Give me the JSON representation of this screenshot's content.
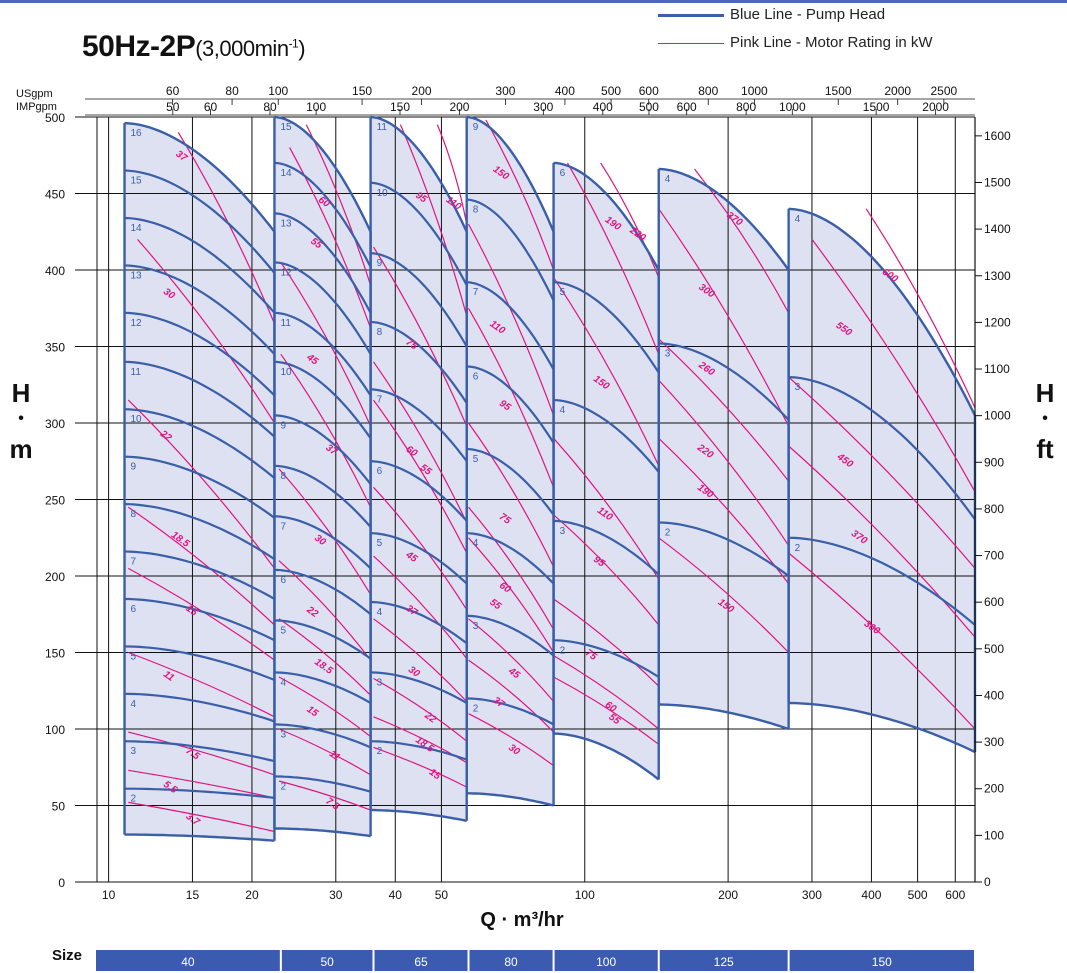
{
  "title": {
    "main": "50Hz-2P",
    "sub": "(3,000min",
    "sup": "-1",
    "close": ")"
  },
  "legend": {
    "blue": {
      "label": "Blue Line - Pump Head",
      "color": "#3a5fa8"
    },
    "pink": {
      "label": "Pink Line - Motor Rating in kW",
      "color": "#e0157f"
    }
  },
  "axes": {
    "left_H": "H",
    "left_dot": "•",
    "left_m": "m",
    "right_H": "H",
    "right_dot": "•",
    "right_ft": "ft",
    "xlabel": "Q · m³/hr",
    "usgpm_label": "USgpm",
    "impgpm_label": "IMPgpm",
    "size_label": "Size"
  },
  "chart_data": {
    "type": "line",
    "title": "50Hz-2P(3,000min-1)",
    "xlabel": "Q · m³/hr",
    "ylabel": "H · m",
    "x_scale": "log",
    "xlim": [
      8.5,
      660
    ],
    "ylim": [
      0,
      500
    ],
    "x_ticks": [
      10,
      15,
      20,
      30,
      40,
      50,
      100,
      200,
      300,
      400,
      500,
      600
    ],
    "y_ticks_m": [
      0,
      50,
      100,
      150,
      200,
      250,
      300,
      350,
      400,
      450,
      500
    ],
    "ft_ticks": [
      0,
      100,
      200,
      300,
      400,
      500,
      600,
      700,
      800,
      900,
      1000,
      1100,
      1200,
      1300,
      1400,
      1500,
      1600
    ],
    "usgpm_ticks": [
      60,
      80,
      100,
      150,
      200,
      300,
      400,
      500,
      600,
      800,
      1000,
      1500,
      2000,
      2500
    ],
    "impgpm_ticks": [
      50,
      60,
      80,
      100,
      150,
      200,
      300,
      400,
      500,
      600,
      800,
      1000,
      1500,
      2000
    ],
    "size_bands": [
      {
        "label": "40",
        "q": [
          8.5,
          23
        ]
      },
      {
        "label": "50",
        "q": [
          23,
          36
        ]
      },
      {
        "label": "65",
        "q": [
          36,
          57
        ]
      },
      {
        "label": "80",
        "q": [
          57,
          86
        ]
      },
      {
        "label": "100",
        "q": [
          86,
          143
        ]
      },
      {
        "label": "125",
        "q": [
          143,
          268
        ]
      },
      {
        "label": "150",
        "q": [
          268,
          660
        ]
      }
    ],
    "groups": [
      {
        "q1": 10.8,
        "q2": 22.3,
        "H_top_left": 496,
        "H_top_right": 425,
        "H_bot_left": 31,
        "H_bot_right": 27,
        "stages": [
          {
            "n": "16",
            "L": 496,
            "R": 425
          },
          {
            "n": "15",
            "L": 465,
            "R": 398
          },
          {
            "n": "14",
            "L": 434,
            "R": 372
          },
          {
            "n": "13",
            "L": 403,
            "R": 345
          },
          {
            "n": "12",
            "L": 372,
            "R": 318
          },
          {
            "n": "11",
            "L": 340,
            "R": 291
          },
          {
            "n": "10",
            "L": 309,
            "R": 264
          },
          {
            "n": "9",
            "L": 278,
            "R": 238
          },
          {
            "n": "8",
            "L": 247,
            "R": 211
          },
          {
            "n": "7",
            "L": 216,
            "R": 185
          },
          {
            "n": "6",
            "L": 185,
            "R": 158
          },
          {
            "n": "5",
            "L": 154,
            "R": 132
          },
          {
            "n": "4",
            "L": 123,
            "R": 105
          },
          {
            "n": "3",
            "L": 92,
            "R": 79
          },
          {
            "n": "2",
            "L": 61,
            "R": 55
          }
        ],
        "kw": [
          {
            "v": "37",
            "q0": 14.0,
            "H0": 490,
            "q1": 22.3,
            "H1": 365,
            "lq": 13.8,
            "lH": 475
          },
          {
            "v": "30",
            "q0": 11.5,
            "H0": 420,
            "q1": 22.3,
            "H1": 300,
            "lq": 13.0,
            "lH": 385
          },
          {
            "v": "22",
            "q0": 11.0,
            "H0": 315,
            "q1": 22.3,
            "H1": 205,
            "lq": 12.8,
            "lH": 292
          },
          {
            "v": "18.5",
            "q0": 11.0,
            "H0": 245,
            "q1": 22.3,
            "H1": 168,
            "lq": 13.5,
            "lH": 226
          },
          {
            "v": "15",
            "q0": 11.0,
            "H0": 205,
            "q1": 22.3,
            "H1": 145,
            "lq": 14.5,
            "lH": 178
          },
          {
            "v": "11",
            "q0": 11.0,
            "H0": 150,
            "q1": 22.3,
            "H1": 108,
            "lq": 13.0,
            "lH": 135
          },
          {
            "v": "7.5",
            "q0": 11.0,
            "H0": 98,
            "q1": 22.3,
            "H1": 70,
            "lq": 14.5,
            "lH": 85
          },
          {
            "v": "5.5",
            "q0": 11.0,
            "H0": 73,
            "q1": 22.3,
            "H1": 55,
            "lq": 13.0,
            "lH": 63
          },
          {
            "v": "3.7",
            "q0": 11.0,
            "H0": 52,
            "q1": 22.3,
            "H1": 33,
            "lq": 14.5,
            "lH": 42
          }
        ]
      },
      {
        "q1": 22.3,
        "q2": 35.5,
        "H_top_left": 500,
        "H_top_right": 425,
        "H_bot_left": 35,
        "H_bot_right": 30,
        "stages": [
          {
            "n": "15",
            "L": 500,
            "R": 425
          },
          {
            "n": "14",
            "L": 470,
            "R": 402
          },
          {
            "n": "13",
            "L": 437,
            "R": 372
          },
          {
            "n": "12",
            "L": 405,
            "R": 345
          },
          {
            "n": "11",
            "L": 372,
            "R": 318
          },
          {
            "n": "10",
            "L": 340,
            "R": 290
          },
          {
            "n": "9",
            "L": 305,
            "R": 260
          },
          {
            "n": "8",
            "L": 272,
            "R": 232
          },
          {
            "n": "7",
            "L": 239,
            "R": 205
          },
          {
            "n": "6",
            "L": 204,
            "R": 175
          },
          {
            "n": "5",
            "L": 171,
            "R": 146
          },
          {
            "n": "4",
            "L": 137,
            "R": 117
          },
          {
            "n": "3",
            "L": 103,
            "R": 88
          },
          {
            "n": "2",
            "L": 69,
            "R": 59
          }
        ],
        "kw": [
          {
            "v": "60",
            "q0": 26.0,
            "H0": 495,
            "q1": 35.5,
            "H1": 390,
            "lq": 27.5,
            "lH": 445
          },
          {
            "v": "55",
            "q0": 24.0,
            "H0": 480,
            "q1": 35.5,
            "H1": 362,
            "lq": 26.5,
            "lH": 418
          },
          {
            "v": "45",
            "q0": 23.0,
            "H0": 405,
            "q1": 35.5,
            "H1": 298,
            "lq": 26.0,
            "lH": 342
          },
          {
            "v": "37",
            "q0": 23.0,
            "H0": 345,
            "q1": 35.5,
            "H1": 245,
            "lq": 28.5,
            "lH": 283
          },
          {
            "v": "30",
            "q0": 22.8,
            "H0": 270,
            "q1": 35.5,
            "H1": 188,
            "lq": 27.0,
            "lH": 224
          },
          {
            "v": "22",
            "q0": 22.8,
            "H0": 210,
            "q1": 35.5,
            "H1": 145,
            "lq": 26.0,
            "lH": 177
          },
          {
            "v": "18.5",
            "q0": 22.8,
            "H0": 172,
            "q1": 35.5,
            "H1": 122,
            "lq": 27.0,
            "lH": 143
          },
          {
            "v": "15",
            "q0": 22.8,
            "H0": 134,
            "q1": 35.5,
            "H1": 95,
            "lq": 26.0,
            "lH": 112
          },
          {
            "v": "11",
            "q0": 22.8,
            "H0": 100,
            "q1": 35.5,
            "H1": 70,
            "lq": 29.0,
            "lH": 83
          },
          {
            "v": "7.5",
            "q0": 22.8,
            "H0": 66,
            "q1": 35.5,
            "H1": 47,
            "lq": 28.5,
            "lH": 52
          }
        ]
      },
      {
        "q1": 35.5,
        "q2": 56.5,
        "H_top_left": 500,
        "H_top_right": 425,
        "H_bot_left": 47,
        "H_bot_right": 40,
        "stages": [
          {
            "n": "11",
            "L": 500,
            "R": 425
          },
          {
            "n": "10",
            "L": 457,
            "R": 390
          },
          {
            "n": "9",
            "L": 411,
            "R": 350
          },
          {
            "n": "8",
            "L": 366,
            "R": 313
          },
          {
            "n": "7",
            "L": 322,
            "R": 275
          },
          {
            "n": "6",
            "L": 275,
            "R": 236
          },
          {
            "n": "5",
            "L": 228,
            "R": 195
          },
          {
            "n": "4",
            "L": 183,
            "R": 156
          },
          {
            "n": "3",
            "L": 137,
            "R": 117
          },
          {
            "n": "2",
            "L": 92,
            "R": 80
          }
        ],
        "kw": [
          {
            "v": "110",
            "q0": 49.0,
            "H0": 495,
            "q1": 56.5,
            "H1": 430,
            "lq": 51.0,
            "lH": 445
          },
          {
            "v": "95",
            "q0": 41.0,
            "H0": 495,
            "q1": 56.5,
            "H1": 370,
            "lq": 44.0,
            "lH": 448
          },
          {
            "v": "75",
            "q0": 36.0,
            "H0": 415,
            "q1": 56.5,
            "H1": 298,
            "lq": 42.0,
            "lH": 352
          },
          {
            "v": "60",
            "q0": 36.0,
            "H0": 340,
            "q1": 56.5,
            "H1": 235,
            "lq": 42.0,
            "lH": 282
          },
          {
            "v": "55",
            "q0": 36.0,
            "H0": 315,
            "q1": 56.5,
            "H1": 215,
            "lq": 45.0,
            "lH": 270
          },
          {
            "v": "45",
            "q0": 36.0,
            "H0": 258,
            "q1": 56.5,
            "H1": 178,
            "lq": 42.0,
            "lH": 213
          },
          {
            "v": "37",
            "q0": 36.0,
            "H0": 213,
            "q1": 56.5,
            "H1": 146,
            "lq": 42.0,
            "lH": 178
          },
          {
            "v": "30",
            "q0": 36.0,
            "H0": 172,
            "q1": 56.5,
            "H1": 118,
            "lq": 42.5,
            "lH": 138
          },
          {
            "v": "22",
            "q0": 36.0,
            "H0": 133,
            "q1": 56.5,
            "H1": 92,
            "lq": 46.0,
            "lH": 108
          },
          {
            "v": "18.5",
            "q0": 36.0,
            "H0": 108,
            "q1": 56.5,
            "H1": 78,
            "lq": 44.0,
            "lH": 92
          },
          {
            "v": "15",
            "q0": 36.0,
            "H0": 88,
            "q1": 56.5,
            "H1": 62,
            "lq": 47.0,
            "lH": 71
          }
        ]
      },
      {
        "q1": 56.5,
        "q2": 86,
        "H_top_left": 500,
        "H_top_right": 425,
        "H_bot_left": 58,
        "H_bot_right": 50,
        "stages": [
          {
            "n": "9",
            "L": 500,
            "R": 425
          },
          {
            "n": "8",
            "L": 446,
            "R": 380
          },
          {
            "n": "7",
            "L": 392,
            "R": 335
          },
          {
            "n": "6",
            "L": 337,
            "R": 287
          },
          {
            "n": "5",
            "L": 283,
            "R": 240
          },
          {
            "n": "4",
            "L": 228,
            "R": 195
          },
          {
            "n": "3",
            "L": 174,
            "R": 148
          },
          {
            "n": "2",
            "L": 120,
            "R": 103
          }
        ],
        "kw": [
          {
            "v": "150",
            "q0": 62.0,
            "H0": 498,
            "q1": 86,
            "H1": 400,
            "lq": 64.0,
            "lH": 465
          },
          {
            "v": "110",
            "q0": 57.0,
            "H0": 430,
            "q1": 86,
            "H1": 305,
            "lq": 63.0,
            "lH": 364
          },
          {
            "v": "95",
            "q0": 57.0,
            "H0": 375,
            "q1": 86,
            "H1": 258,
            "lq": 66.0,
            "lH": 312
          },
          {
            "v": "75",
            "q0": 57.0,
            "H0": 300,
            "q1": 86,
            "H1": 206,
            "lq": 66.0,
            "lH": 238
          },
          {
            "v": "60",
            "q0": 57.0,
            "H0": 245,
            "q1": 86,
            "H1": 165,
            "lq": 66.0,
            "lH": 193
          },
          {
            "v": "55",
            "q0": 57.0,
            "H0": 225,
            "q1": 86,
            "H1": 150,
            "lq": 63.0,
            "lH": 182
          },
          {
            "v": "45",
            "q0": 57.0,
            "H0": 172,
            "q1": 86,
            "H1": 118,
            "lq": 69.0,
            "lH": 137
          },
          {
            "v": "37",
            "q0": 57.0,
            "H0": 145,
            "q1": 86,
            "H1": 98,
            "lq": 64.0,
            "lH": 118
          },
          {
            "v": "30",
            "q0": 57.0,
            "H0": 110,
            "q1": 86,
            "H1": 76,
            "lq": 69.0,
            "lH": 87
          }
        ]
      },
      {
        "q1": 86,
        "q2": 143,
        "H_top_left": 470,
        "H_top_right": 400,
        "H_bot_left": 97,
        "H_bot_right": 67,
        "stages": [
          {
            "n": "6",
            "L": 470,
            "R": 400
          },
          {
            "n": "5",
            "L": 392,
            "R": 333
          },
          {
            "n": "4",
            "L": 315,
            "R": 268
          },
          {
            "n": "3",
            "L": 236,
            "R": 201
          },
          {
            "n": "2",
            "L": 158,
            "R": 134
          }
        ],
        "kw": [
          {
            "v": "220",
            "q0": 108,
            "H0": 470,
            "q1": 143,
            "H1": 395,
            "lq": 124,
            "lH": 425
          },
          {
            "v": "190",
            "q0": 92,
            "H0": 470,
            "q1": 143,
            "H1": 345,
            "lq": 110,
            "lH": 432
          },
          {
            "v": "150",
            "q0": 86,
            "H0": 395,
            "q1": 143,
            "H1": 272,
            "lq": 104,
            "lH": 328
          },
          {
            "v": "110",
            "q0": 86,
            "H0": 290,
            "q1": 143,
            "H1": 198,
            "lq": 106,
            "lH": 242
          },
          {
            "v": "95",
            "q0": 86,
            "H0": 240,
            "q1": 143,
            "H1": 168,
            "lq": 104,
            "lH": 210
          },
          {
            "v": "75",
            "q0": 86,
            "H0": 185,
            "q1": 143,
            "H1": 128,
            "lq": 100,
            "lH": 149
          },
          {
            "v": "60",
            "q0": 86,
            "H0": 148,
            "q1": 143,
            "H1": 100,
            "lq": 110,
            "lH": 115
          },
          {
            "v": "55",
            "q0": 86,
            "H0": 134,
            "q1": 143,
            "H1": 90,
            "lq": 112,
            "lH": 107
          }
        ]
      },
      {
        "q1": 143,
        "q2": 268,
        "H_top_left": 466,
        "H_top_right": 400,
        "H_bot_left": 116,
        "H_bot_right": 100,
        "stages": [
          {
            "n": "4",
            "L": 466,
            "R": 400
          },
          {
            "n": "3",
            "L": 352,
            "R": 302
          },
          {
            "n": "2",
            "L": 235,
            "R": 200
          }
        ],
        "kw": [
          {
            "v": "370",
            "q0": 170,
            "H0": 466,
            "q1": 268,
            "H1": 372,
            "lq": 198,
            "lH": 435
          },
          {
            "v": "300",
            "q0": 143,
            "H0": 440,
            "q1": 268,
            "H1": 298,
            "lq": 173,
            "lH": 388
          },
          {
            "v": "260",
            "q0": 143,
            "H0": 355,
            "q1": 268,
            "H1": 262,
            "lq": 173,
            "lH": 337
          },
          {
            "v": "220",
            "q0": 143,
            "H0": 328,
            "q1": 268,
            "H1": 220,
            "lq": 172,
            "lH": 283
          },
          {
            "v": "190",
            "q0": 143,
            "H0": 290,
            "q1": 268,
            "H1": 195,
            "lq": 172,
            "lH": 257
          },
          {
            "v": "150",
            "q0": 143,
            "H0": 225,
            "q1": 268,
            "H1": 150,
            "lq": 190,
            "lH": 182
          }
        ]
      },
      {
        "q1": 268,
        "q2": 660,
        "H_top_left": 440,
        "H_top_right": 305,
        "H_bot_left": 117,
        "H_bot_right": 85,
        "stages": [
          {
            "n": "4",
            "L": 440,
            "R": 305
          },
          {
            "n": "3",
            "L": 330,
            "R": 237
          },
          {
            "n": "2",
            "L": 225,
            "R": 168
          }
        ],
        "kw": [
          {
            "v": "600",
            "q0": 390,
            "H0": 440,
            "q1": 660,
            "H1": 310,
            "lq": 420,
            "lH": 398
          },
          {
            "v": "550",
            "q0": 300,
            "H0": 420,
            "q1": 660,
            "H1": 255,
            "lq": 336,
            "lH": 363
          },
          {
            "v": "450",
            "q0": 268,
            "H0": 330,
            "q1": 660,
            "H1": 205,
            "lq": 338,
            "lH": 277
          },
          {
            "v": "370",
            "q0": 268,
            "H0": 285,
            "q1": 660,
            "H1": 160,
            "lq": 362,
            "lH": 227
          },
          {
            "v": "300",
            "q0": 268,
            "H0": 215,
            "q1": 660,
            "H1": 100,
            "lq": 385,
            "lH": 168
          }
        ]
      }
    ]
  }
}
